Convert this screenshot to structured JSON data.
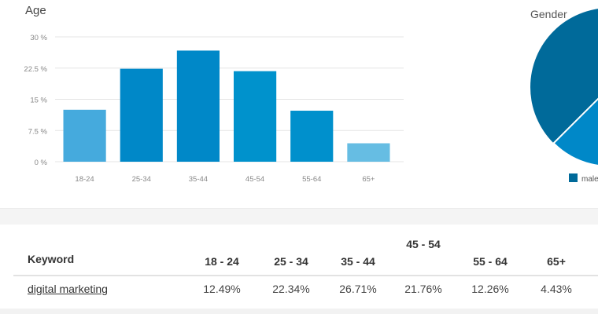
{
  "chart_data": [
    {
      "type": "bar",
      "title": "Age",
      "categories": [
        "18-24",
        "25-34",
        "35-44",
        "45-54",
        "55-64",
        "65+"
      ],
      "values": [
        12.49,
        22.34,
        26.71,
        21.76,
        12.26,
        4.43
      ],
      "ylim": [
        0,
        30
      ],
      "yticks": [
        "0 %",
        "7.5 %",
        "15 %",
        "22.5 %",
        "30 %"
      ],
      "ytick_values": [
        0,
        7.5,
        15,
        22.5,
        30
      ],
      "grid": true,
      "colors": [
        "#45aadd",
        "#0088c8",
        "#0088c8",
        "#0092cc",
        "#0090cc",
        "#66bde3"
      ]
    },
    {
      "type": "pie",
      "title": "Gender",
      "legend": [
        {
          "label": "male",
          "color": "#006a9a"
        }
      ],
      "colors": [
        "#006a9a",
        "#0088c8"
      ]
    }
  ],
  "table": {
    "headers": [
      "Keyword",
      "18 - 24",
      "25 - 34",
      "35 - 44",
      "45 - 54",
      "55 - 64",
      "65+"
    ],
    "rows": [
      {
        "keyword": "digital marketing",
        "values": [
          "12.49%",
          "22.34%",
          "26.71%",
          "21.76%",
          "12.26%",
          "4.43%"
        ]
      }
    ]
  }
}
